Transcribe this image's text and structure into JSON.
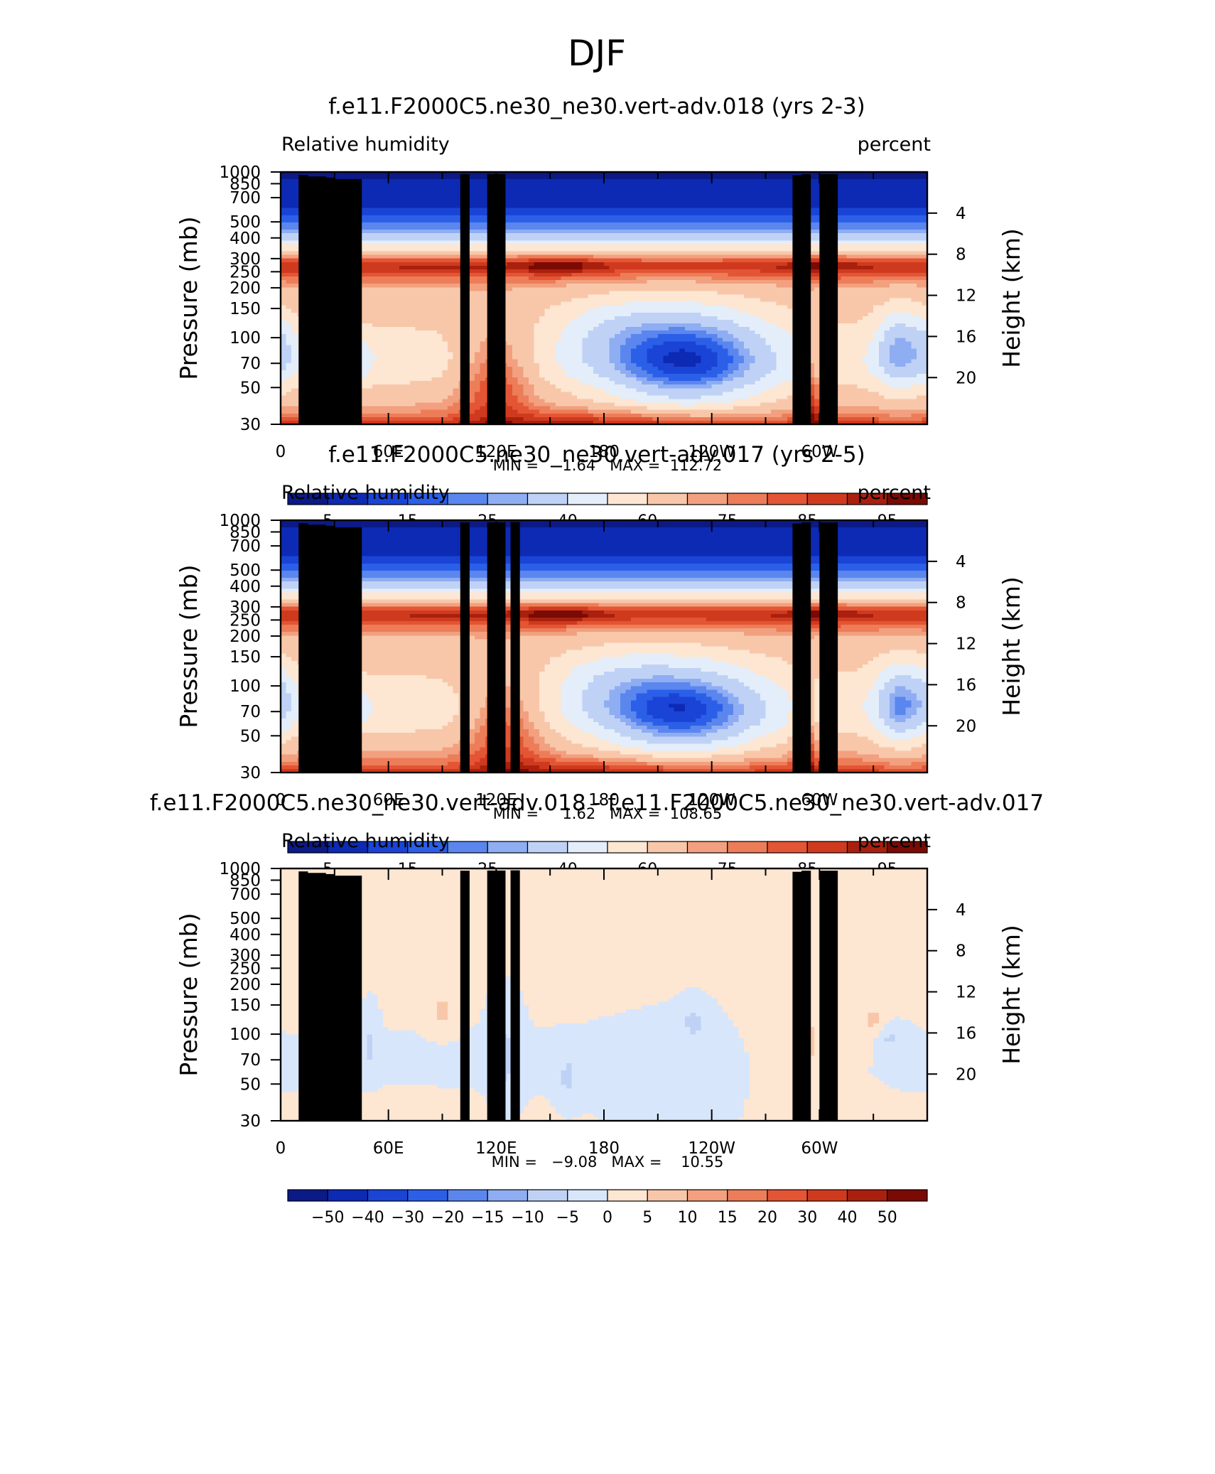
{
  "page_title": "DJF",
  "colors": {
    "frame": "#000000",
    "topo": "#000000",
    "abs_palette": [
      "#0b1a86",
      "#0d2ab4",
      "#1a44d6",
      "#2c5fe8",
      "#5a86ee",
      "#8fadf2",
      "#bfd2f6",
      "#e4eefa",
      "#fde6d2",
      "#f8c7a9",
      "#f2a07f",
      "#ec7d58",
      "#e35534",
      "#cf3a1e",
      "#a9200e",
      "#7a0a03"
    ],
    "diff_palette": [
      "#0b1a86",
      "#0d2ab4",
      "#1a44d6",
      "#2c5fe8",
      "#5a86ee",
      "#8fadf2",
      "#bfd2f6",
      "#d8e6fb",
      "#fde6d2",
      "#f8c7a9",
      "#f2a07f",
      "#ec7d58",
      "#e35534",
      "#cf3a1e",
      "#a9200e",
      "#7a0a03"
    ]
  },
  "chart_data": [
    {
      "type": "heatmap",
      "title": "f.e11.F2000C5.ne30_ne30.vert-adv.018 (yrs 2-3)",
      "variable_label": "Relative humidity",
      "units_label": "percent",
      "ylabel": "Pressure (mb)",
      "ylabel_right": "Height (km)",
      "x_tick_labels": [
        "0",
        "60E",
        "120E",
        "180",
        "120W",
        "60W"
      ],
      "x_ticks_deg": [
        0,
        60,
        120,
        180,
        240,
        300
      ],
      "xlim": [
        0,
        360
      ],
      "y_tick_labels": [
        "30",
        "50",
        "70",
        "100",
        "150",
        "200",
        "250",
        "300",
        "400",
        "500",
        "700",
        "850",
        "1000"
      ],
      "ylim_mb": [
        1000,
        30
      ],
      "y_scale": "log",
      "right_tick_labels": [
        "20",
        "16",
        "12",
        "8",
        "4"
      ],
      "stats_text": "MIN =     1.64   MAX =  112.72",
      "min": 1.64,
      "max": 112.72,
      "colorbar_labels": [
        "5",
        "15",
        "25",
        "40",
        "60",
        "75",
        "85",
        "95"
      ],
      "levels": [
        5,
        10,
        15,
        20,
        25,
        30,
        40,
        50,
        60,
        70,
        75,
        80,
        85,
        90,
        95
      ],
      "mode": "abs",
      "approx_field": {
        "base": [
          [
            1000,
            88
          ],
          [
            900,
            78
          ],
          [
            800,
            72
          ],
          [
            700,
            66
          ],
          [
            600,
            62
          ],
          [
            500,
            56
          ],
          [
            400,
            54
          ],
          [
            300,
            58
          ],
          [
            200,
            64
          ],
          [
            150,
            70
          ],
          [
            110,
            92
          ],
          [
            90,
            62
          ],
          [
            70,
            28
          ],
          [
            50,
            10
          ],
          [
            30,
            4
          ]
        ],
        "features": [
          {
            "lon": 225,
            "p": 400,
            "dlon": 48,
            "dlogp": 0.32,
            "amp": -46
          },
          {
            "lon": 180,
            "p": 250,
            "dlon": 30,
            "dlogp": 0.2,
            "amp": -10
          },
          {
            "lon": 35,
            "p": 400,
            "dlon": 13,
            "dlogp": 0.14,
            "amp": -26
          },
          {
            "lon": 345,
            "p": 350,
            "dlon": 14,
            "dlogp": 0.25,
            "amp": -30
          },
          {
            "lon": 2,
            "p": 350,
            "dlon": 8,
            "dlogp": 0.2,
            "amp": -14
          },
          {
            "lon": 120,
            "p": 500,
            "dlon": 22,
            "dlogp": 0.28,
            "amp": 24
          },
          {
            "lon": 295,
            "p": 600,
            "dlon": 6,
            "dlogp": 0.35,
            "amp": 24
          },
          {
            "lon": 200,
            "p": 930,
            "dlon": 65,
            "dlogp": 0.07,
            "amp": 10
          },
          {
            "lon": 30,
            "p": 700,
            "dlon": 9,
            "dlogp": 0.16,
            "amp": 16
          },
          {
            "lon": 155,
            "p": 110,
            "dlon": 20,
            "dlogp": 0.06,
            "amp": 10
          },
          {
            "lon": 300,
            "p": 110,
            "dlon": 15,
            "dlogp": 0.06,
            "amp": 8
          }
        ]
      },
      "topography": [
        [
          10,
          960
        ],
        [
          15,
          940
        ],
        [
          20,
          940
        ],
        [
          25,
          925
        ],
        [
          30,
          905
        ],
        [
          35,
          905
        ],
        [
          40,
          905
        ],
        [
          100,
          970
        ],
        [
          115,
          972
        ],
        [
          120,
          972
        ],
        [
          285,
          955
        ],
        [
          290,
          970
        ],
        [
          300,
          970
        ],
        [
          305,
          970
        ]
      ]
    },
    {
      "type": "heatmap",
      "title": "f.e11.F2000C5.ne30_ne30.vert-adv.017 (yrs 2-5)",
      "variable_label": "Relative humidity",
      "units_label": "percent",
      "ylabel": "Pressure (mb)",
      "ylabel_right": "Height (km)",
      "x_tick_labels": [
        "0",
        "60E",
        "120E",
        "180",
        "120W",
        "60W"
      ],
      "x_ticks_deg": [
        0,
        60,
        120,
        180,
        240,
        300
      ],
      "xlim": [
        0,
        360
      ],
      "y_tick_labels": [
        "30",
        "50",
        "70",
        "100",
        "150",
        "200",
        "250",
        "300",
        "400",
        "500",
        "700",
        "850",
        "1000"
      ],
      "ylim_mb": [
        1000,
        30
      ],
      "y_scale": "log",
      "right_tick_labels": [
        "20",
        "16",
        "12",
        "8",
        "4"
      ],
      "stats_text": "MIN =     1.62   MAX =  108.65",
      "min": 1.62,
      "max": 108.65,
      "colorbar_labels": [
        "5",
        "15",
        "25",
        "40",
        "60",
        "75",
        "85",
        "95"
      ],
      "levels": [
        5,
        10,
        15,
        20,
        25,
        30,
        40,
        50,
        60,
        70,
        75,
        80,
        85,
        90,
        95
      ],
      "mode": "abs",
      "approx_field": {
        "base": [
          [
            1000,
            88
          ],
          [
            900,
            79
          ],
          [
            800,
            73
          ],
          [
            700,
            67
          ],
          [
            600,
            62
          ],
          [
            500,
            56
          ],
          [
            400,
            54
          ],
          [
            300,
            58
          ],
          [
            200,
            64
          ],
          [
            150,
            70
          ],
          [
            110,
            92
          ],
          [
            90,
            62
          ],
          [
            70,
            28
          ],
          [
            50,
            10
          ],
          [
            30,
            4
          ]
        ],
        "features": [
          {
            "lon": 222,
            "p": 420,
            "dlon": 46,
            "dlogp": 0.3,
            "amp": -44
          },
          {
            "lon": 180,
            "p": 260,
            "dlon": 30,
            "dlogp": 0.2,
            "amp": -10
          },
          {
            "lon": 35,
            "p": 400,
            "dlon": 12,
            "dlogp": 0.13,
            "amp": -24
          },
          {
            "lon": 345,
            "p": 380,
            "dlon": 14,
            "dlogp": 0.25,
            "amp": -32
          },
          {
            "lon": 2,
            "p": 350,
            "dlon": 8,
            "dlogp": 0.2,
            "amp": -14
          },
          {
            "lon": 125,
            "p": 500,
            "dlon": 22,
            "dlogp": 0.28,
            "amp": 24
          },
          {
            "lon": 292,
            "p": 620,
            "dlon": 6,
            "dlogp": 0.35,
            "amp": 24
          },
          {
            "lon": 200,
            "p": 930,
            "dlon": 65,
            "dlogp": 0.07,
            "amp": 10
          },
          {
            "lon": 30,
            "p": 700,
            "dlon": 9,
            "dlogp": 0.16,
            "amp": 16
          },
          {
            "lon": 155,
            "p": 110,
            "dlon": 20,
            "dlogp": 0.06,
            "amp": 10
          },
          {
            "lon": 300,
            "p": 110,
            "dlon": 15,
            "dlogp": 0.06,
            "amp": 8
          }
        ]
      },
      "topography": [
        [
          10,
          960
        ],
        [
          15,
          940
        ],
        [
          20,
          940
        ],
        [
          25,
          925
        ],
        [
          30,
          905
        ],
        [
          35,
          905
        ],
        [
          40,
          905
        ],
        [
          100,
          970
        ],
        [
          115,
          972
        ],
        [
          120,
          972
        ],
        [
          128,
          975
        ],
        [
          285,
          955
        ],
        [
          290,
          970
        ],
        [
          300,
          970
        ],
        [
          305,
          970
        ]
      ]
    },
    {
      "type": "heatmap",
      "title": "f.e11.F2000C5.ne30_ne30.vert-adv.018 - f.e11.F2000C5.ne30_ne30.vert-adv.017",
      "variable_label": "Relative humidity",
      "units_label": "percent",
      "ylabel": "Pressure (mb)",
      "ylabel_right": "Height (km)",
      "x_tick_labels": [
        "0",
        "60E",
        "120E",
        "180",
        "120W",
        "60W"
      ],
      "x_ticks_deg": [
        0,
        60,
        120,
        180,
        240,
        300
      ],
      "xlim": [
        0,
        360
      ],
      "y_tick_labels": [
        "30",
        "50",
        "70",
        "100",
        "150",
        "200",
        "250",
        "300",
        "400",
        "500",
        "700",
        "850",
        "1000"
      ],
      "ylim_mb": [
        1000,
        30
      ],
      "y_scale": "log",
      "right_tick_labels": [
        "20",
        "16",
        "12",
        "8",
        "4"
      ],
      "stats_text": "MIN =   −9.08   MAX =    10.55",
      "min": -9.08,
      "max": 10.55,
      "colorbar_labels": [
        "−50",
        "−40",
        "−30",
        "−20",
        "−15",
        "−10",
        "−5",
        "0",
        "5",
        "10",
        "15",
        "20",
        "30",
        "40",
        "50"
      ],
      "levels": [
        -50,
        -40,
        -30,
        -20,
        -15,
        -10,
        -5,
        0,
        5,
        10,
        15,
        20,
        30,
        40,
        50
      ],
      "mode": "diff",
      "approx_field": {
        "base": [
          [
            1000,
            0.5
          ],
          [
            850,
            0.3
          ],
          [
            500,
            -0.5
          ],
          [
            200,
            0.3
          ],
          [
            100,
            0.6
          ],
          [
            30,
            0.2
          ]
        ],
        "features": [
          {
            "lon": 125,
            "p": 400,
            "dlon": 8,
            "dlogp": 0.3,
            "amp": -6
          },
          {
            "lon": 160,
            "p": 550,
            "dlon": 6,
            "dlogp": 0.15,
            "amp": -6
          },
          {
            "lon": 230,
            "p": 250,
            "dlon": 8,
            "dlogp": 0.12,
            "amp": -5.5
          },
          {
            "lon": 338,
            "p": 320,
            "dlon": 8,
            "dlogp": 0.08,
            "amp": -6
          },
          {
            "lon": 50,
            "p": 350,
            "dlon": 4,
            "dlogp": 0.2,
            "amp": -5.5
          },
          {
            "lon": 90,
            "p": 220,
            "dlon": 7,
            "dlogp": 0.1,
            "amp": 7
          },
          {
            "lon": 294,
            "p": 330,
            "dlon": 4,
            "dlogp": 0.1,
            "amp": 7
          },
          {
            "lon": 330,
            "p": 250,
            "dlon": 6,
            "dlogp": 0.12,
            "amp": 6
          },
          {
            "lon": 15,
            "p": 210,
            "dlon": 8,
            "dlogp": 0.08,
            "amp": 6
          },
          {
            "lon": 285,
            "p": 600,
            "dlon": 30,
            "dlogp": 0.45,
            "amp": 4
          },
          {
            "lon": 60,
            "p": 900,
            "dlon": 40,
            "dlogp": 0.1,
            "amp": 3.5
          },
          {
            "lon": 230,
            "p": 650,
            "dlon": 40,
            "dlogp": 0.35,
            "amp": -3.5
          }
        ]
      },
      "topography": [
        [
          10,
          960
        ],
        [
          15,
          940
        ],
        [
          20,
          940
        ],
        [
          25,
          925
        ],
        [
          30,
          905
        ],
        [
          35,
          905
        ],
        [
          40,
          905
        ],
        [
          100,
          970
        ],
        [
          115,
          972
        ],
        [
          120,
          972
        ],
        [
          128,
          975
        ],
        [
          285,
          955
        ],
        [
          290,
          970
        ],
        [
          300,
          970
        ],
        [
          305,
          970
        ]
      ]
    }
  ]
}
